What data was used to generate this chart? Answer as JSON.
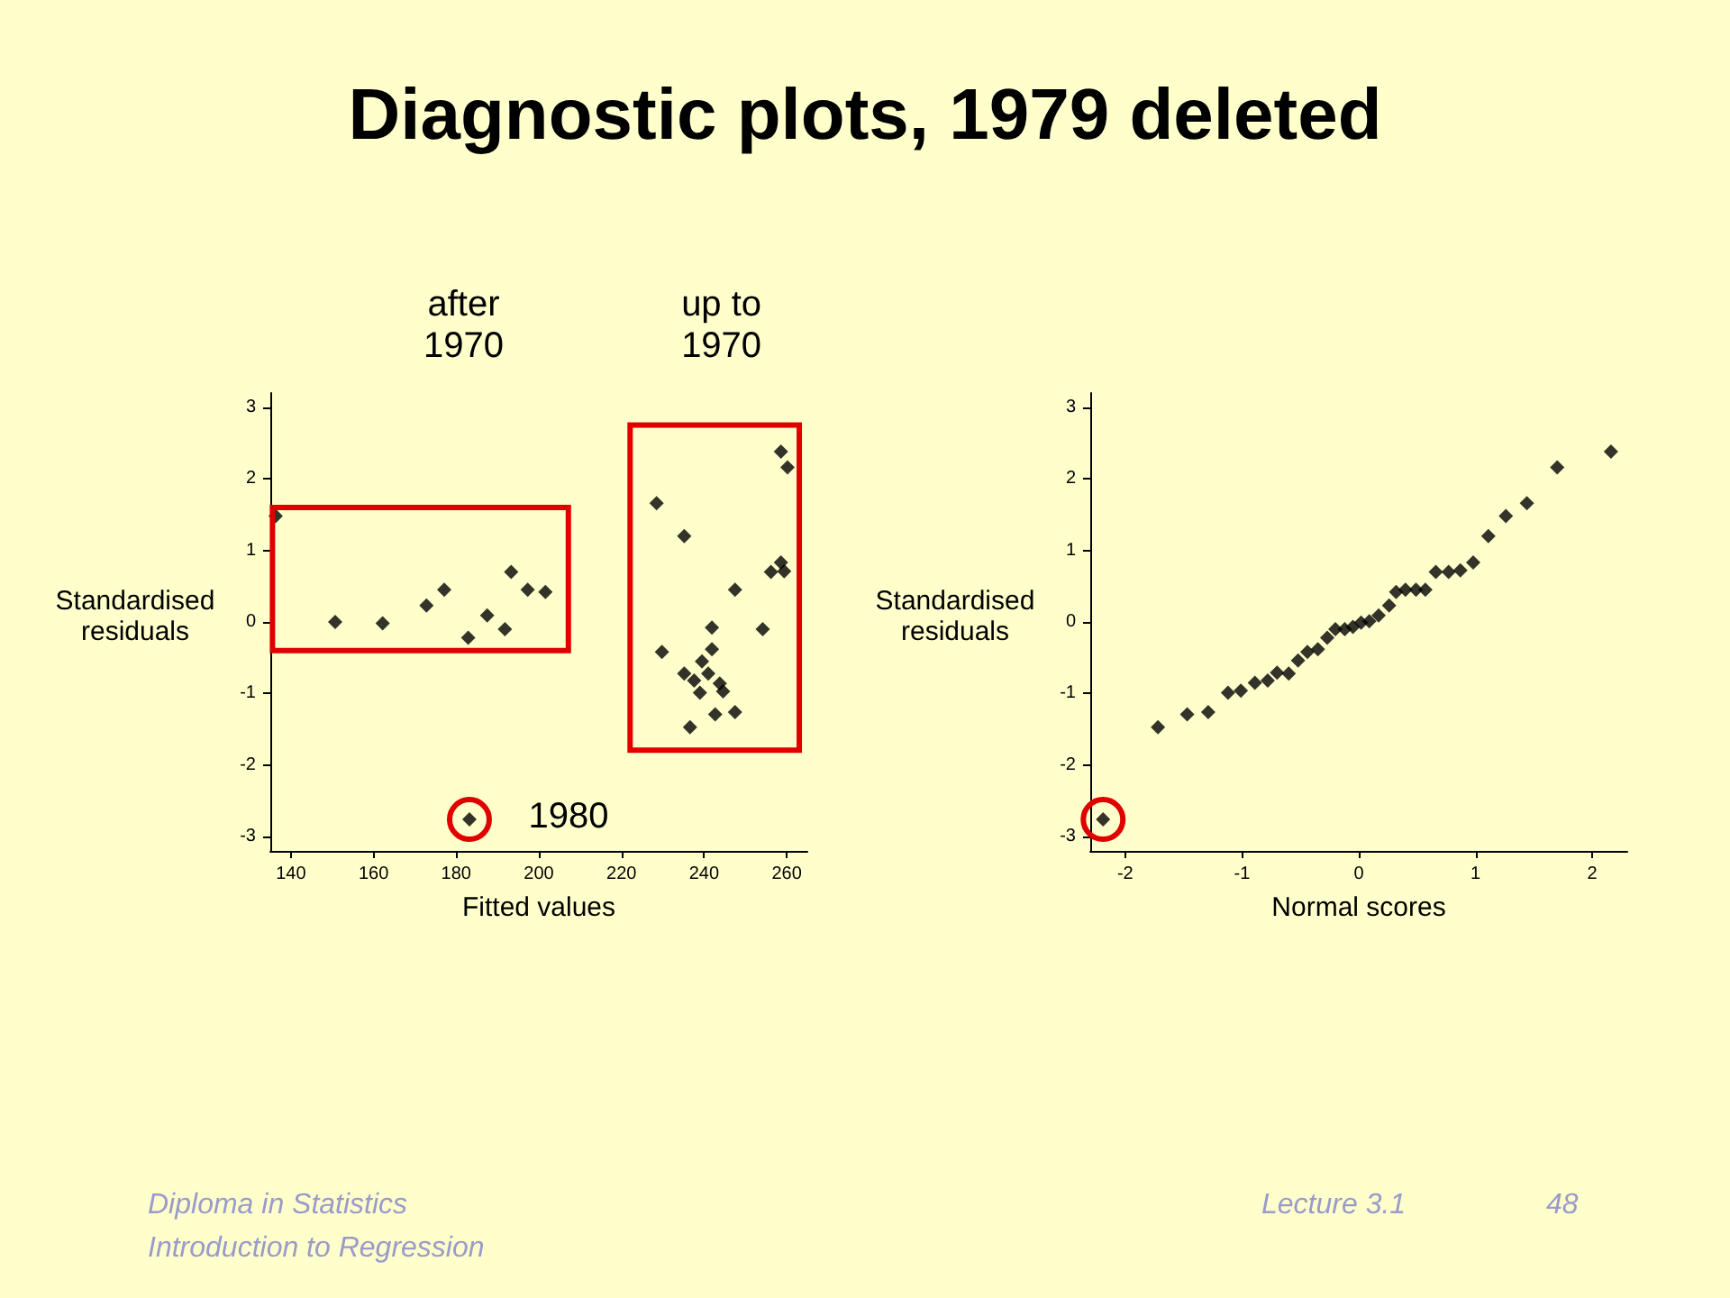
{
  "chart_data": [
    {
      "type": "scatter",
      "title": "Diagnostic plots, 1979 deleted",
      "xlabel": "Fitted values",
      "ylabel": "Standardised residuals",
      "marker": "diamond",
      "grid": false,
      "xlim": [
        135,
        265
      ],
      "xticks": [
        140,
        160,
        180,
        200,
        220,
        240,
        260
      ],
      "ylim": [
        -3.2,
        3.2
      ],
      "yticks": [
        -3,
        -2,
        -1,
        0,
        1,
        2,
        3
      ],
      "annotations": [
        "after 1970",
        "up to 1970",
        {
          "text": "1980",
          "x": 183.2,
          "y": -2.76
        }
      ],
      "series": [
        {
          "color": "#000000",
          "x": [
            136.3,
            150.7,
            162.2,
            172.8,
            177.1,
            182.9,
            187.5,
            191.8,
            193.3,
            197.3,
            201.6,
            183.2,
            228.5,
            229.8,
            235.2,
            235.2,
            236.6,
            237.6,
            239.0,
            239.5,
            241.0,
            241.9,
            241.9,
            242.7,
            243.8,
            244.6,
            247.5,
            247.5,
            254.2,
            256.2,
            258.6,
            258.6,
            259.4,
            260.2
          ],
          "values": [
            1.48,
            0.0,
            -0.02,
            0.23,
            0.45,
            -0.22,
            0.09,
            -0.1,
            0.7,
            0.45,
            0.42,
            -2.76,
            1.66,
            -0.42,
            1.2,
            -0.72,
            -1.47,
            -0.82,
            -0.99,
            -0.55,
            -0.72,
            -0.08,
            -0.38,
            -1.29,
            -0.86,
            -0.97,
            0.45,
            -1.26,
            -0.1,
            0.7,
            0.83,
            2.38,
            0.71,
            2.16
          ]
        }
      ]
    },
    {
      "type": "scatter",
      "xlabel": "Normal scores",
      "ylabel": "Standardised residuals",
      "marker": "diamond",
      "grid": false,
      "xlim": [
        -2.3,
        2.3
      ],
      "xticks": [
        -2,
        -1,
        0,
        1,
        2
      ],
      "ylim": [
        -3.2,
        3.2
      ],
      "yticks": [
        -3,
        -2,
        -1,
        0,
        1,
        2,
        3
      ],
      "annotations": [
        "Diploma in Statistics",
        "Introduction to Regression",
        "Lecture 3.1",
        "48"
      ],
      "series": [
        {
          "color": "#000000",
          "x": [
            -2.19,
            -1.72,
            -1.47,
            -1.29,
            -1.12,
            -1.01,
            -0.89,
            -0.78,
            -0.7,
            -0.6,
            -0.52,
            -0.44,
            -0.35,
            -0.27,
            -0.2,
            -0.12,
            -0.05,
            0.02,
            0.09,
            0.17,
            0.26,
            0.32,
            0.4,
            0.49,
            0.57,
            0.66,
            0.77,
            0.87,
            0.98,
            1.11,
            1.26,
            1.44,
            1.7,
            2.16
          ],
          "values": [
            -2.76,
            -1.47,
            -1.29,
            -1.26,
            -0.99,
            -0.96,
            -0.85,
            -0.82,
            -0.71,
            -0.72,
            -0.54,
            -0.42,
            -0.38,
            -0.22,
            -0.1,
            -0.1,
            -0.07,
            -0.01,
            0.01,
            0.09,
            0.23,
            0.42,
            0.45,
            0.45,
            0.45,
            0.7,
            0.7,
            0.72,
            0.83,
            1.2,
            1.48,
            1.66,
            2.16,
            2.38
          ]
        }
      ]
    }
  ]
}
